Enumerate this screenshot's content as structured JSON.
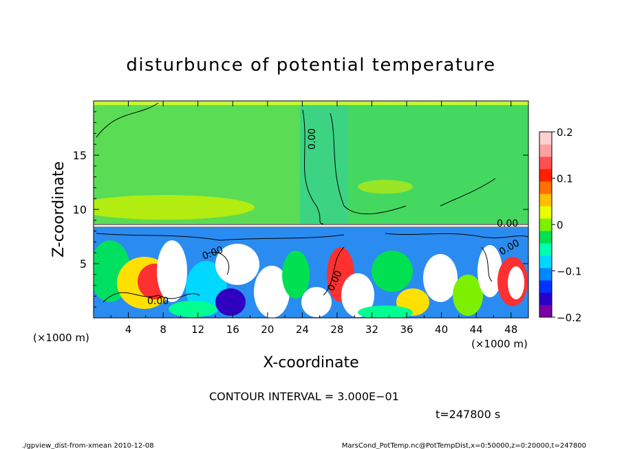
{
  "chart_data": {
    "type": "heatmap",
    "title": "disturbunce of potential temperature",
    "xlabel": "X-coordinate",
    "ylabel": "Z-coordinate",
    "x_unit_left": "(×1000 m)",
    "x_unit_right": "(×1000 m)",
    "xlim": [
      0,
      50
    ],
    "ylim": [
      0,
      20
    ],
    "x_ticks": [
      4,
      8,
      12,
      16,
      20,
      24,
      28,
      32,
      36,
      40,
      44,
      48
    ],
    "y_ticks": [
      5,
      10,
      15
    ],
    "colorbar": {
      "min": -0.2,
      "max": 0.2,
      "ticks": [
        0.2,
        0.1,
        0,
        -0.1,
        -0.2
      ],
      "tick_labels": [
        "0.2",
        "0.1",
        "0",
        "−0.1",
        "−0.2"
      ],
      "colors": [
        "#7a00a8",
        "#2a00c8",
        "#0033ff",
        "#0088ff",
        "#00d8ff",
        "#00ffb0",
        "#00e050",
        "#7cf000",
        "#e8ff00",
        "#ffc000",
        "#ff7000",
        "#ff2000",
        "#ff5050",
        "#ffa0a0",
        "#ffd0d0"
      ]
    },
    "contour_labels": [
      "0.00",
      "0.00",
      "0.00",
      "0.00",
      "0.00",
      "0.00"
    ],
    "contour_interval_text": "CONTOUR INTERVAL = 3.000E−01",
    "time_text": "t=247800 s",
    "grid": false
  },
  "footer": {
    "left": "./gpview_dist-from-xmean  2010-12-08",
    "right": "MarsCond_PotTemp.nc@PotTempDist,x=0:50000,z=0:20000,t=247800"
  }
}
